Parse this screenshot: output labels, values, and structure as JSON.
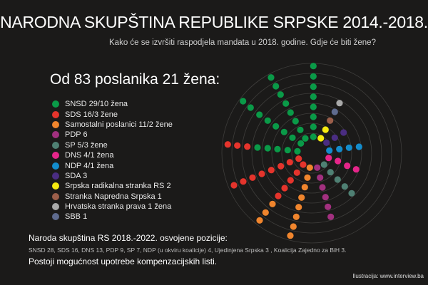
{
  "title": "NARODNA SKUPŠTINA REPUBLIKE SRPSKE 2014.-2018.",
  "subtitle": "Kako će se izvršiti raspodjela mandata u 2018. godine. Gdje će biti žene?",
  "heading": "Od 83 poslanika 21 žena:",
  "legend": [
    {
      "label": "SNSD 29/10 žena",
      "color": "#0a9a48",
      "seats": 29
    },
    {
      "label": "SDS 16/3 žene",
      "color": "#e5342c",
      "seats": 16
    },
    {
      "label": "Samostalni poslanici 11/2 žene",
      "color": "#f0852d",
      "seats": 11
    },
    {
      "label": "PDP 6",
      "color": "#a2307f",
      "seats": 6
    },
    {
      "label": "SP 5/3 žene",
      "color": "#4f8073",
      "seats": 5
    },
    {
      "label": "DNS 4/1 žena",
      "color": "#e6258a",
      "seats": 4
    },
    {
      "label": "NDP 4/1 žena",
      "color": "#138ccc",
      "seats": 4
    },
    {
      "label": "SDA 3",
      "color": "#4a2d82",
      "seats": 3
    },
    {
      "label": "Srpska radikalna stranka RS 2",
      "color": "#f6ea10",
      "seats": 2
    },
    {
      "label": "Stranka Napredna Srpska 1",
      "color": "#9b5e4a",
      "seats": 1
    },
    {
      "label": "Hrvatska stranka prava 1 žena",
      "color": "#a9a9a9",
      "seats": 1
    },
    {
      "label": "SBB 1",
      "color": "#5f6b8e",
      "seats": 1
    }
  ],
  "footer": {
    "line1": "Naroda skupština RS 2018.-2022. osvojene pozicije:",
    "line2": "SNSD 28, SDS 16, DNS 13, PDP 9, SP 7, NDP (u okviru koalicije) 4, Ujedinjena Srpska 3 , Koalicija Zajedno za BiH 3.",
    "line3": "Postoji mogućnost upotrebe kompenzacijskih listi."
  },
  "credit": "Ilustracija: www.interview.ba"
}
